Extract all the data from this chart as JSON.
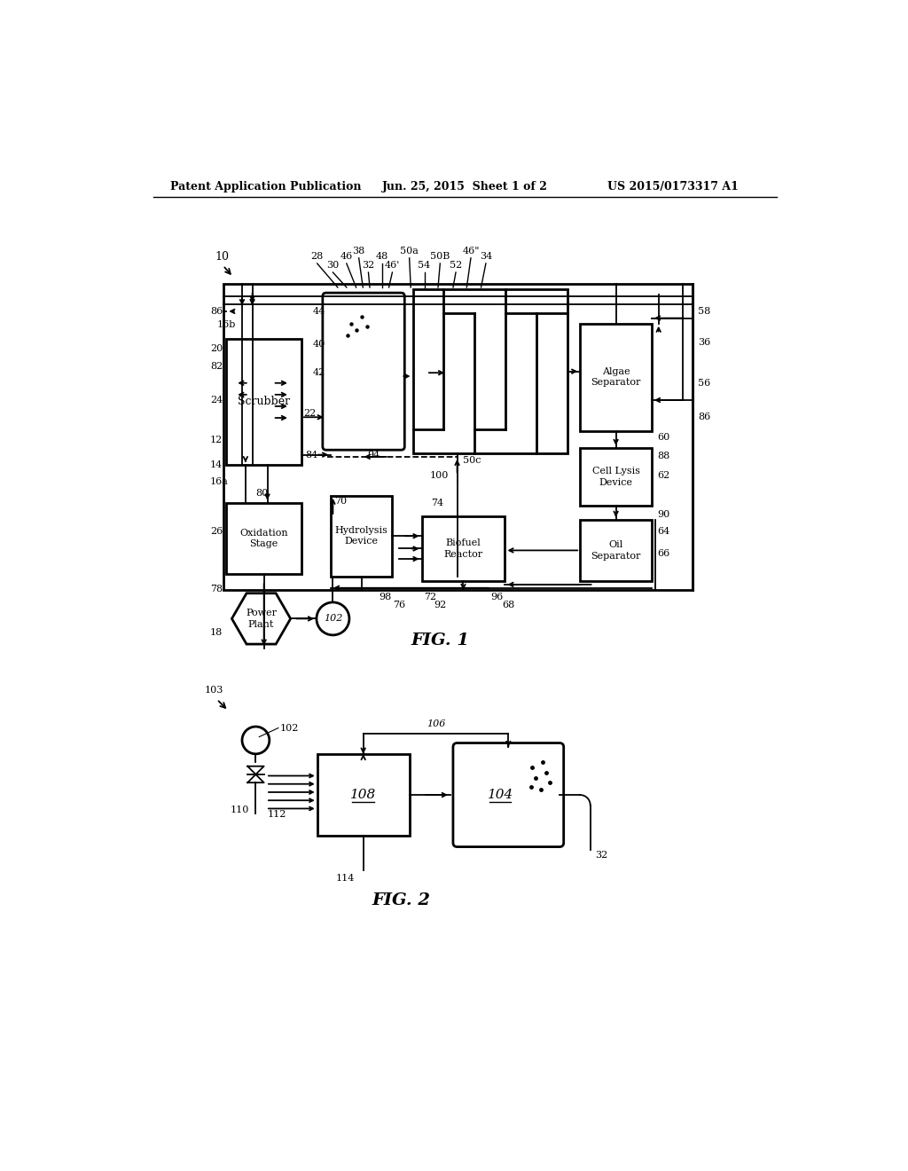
{
  "bg_color": "#ffffff",
  "line_color": "#000000",
  "header_left": "Patent Application Publication",
  "header_center": "Jun. 25, 2015  Sheet 1 of 2",
  "header_right": "US 2015/0173317 A1",
  "fig1_label": "FIG. 1",
  "fig2_label": "FIG. 2",
  "lw_thick": 2.0,
  "lw_thin": 1.3
}
